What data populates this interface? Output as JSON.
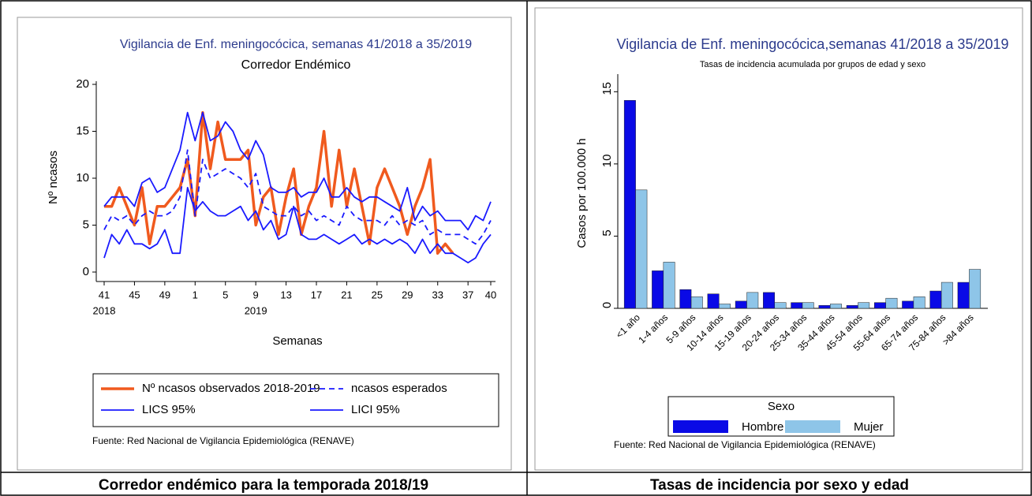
{
  "chart_data": [
    {
      "type": "line",
      "title": "Vigilancia de Enf. meningocócica, semanas 41/2018 a 35/2019",
      "subtitle": "Corredor Endémico",
      "y_label": "Nº ncasos",
      "x_label": "Semanas",
      "source": "Fuente: Red Nacional de Vigilancia Epidemiológica (RENAVE)",
      "caption": "Corredor endémico para la temporada 2018/19",
      "categories": [
        "41",
        null,
        null,
        null,
        "45",
        null,
        null,
        null,
        "49",
        null,
        null,
        null,
        "1",
        null,
        null,
        null,
        "5",
        null,
        null,
        null,
        "9",
        null,
        null,
        null,
        "13",
        null,
        null,
        null,
        "17",
        null,
        null,
        null,
        "21",
        null,
        null,
        null,
        "25",
        null,
        null,
        null,
        "29",
        null,
        null,
        null,
        "33",
        null,
        null,
        null,
        "37",
        null,
        null,
        "40"
      ],
      "years": [
        "2018",
        null,
        null,
        null,
        null,
        null,
        null,
        null,
        null,
        null,
        null,
        null,
        null,
        null,
        null,
        null,
        null,
        null,
        null,
        null,
        "2019",
        null,
        null,
        null,
        null,
        null,
        null,
        null,
        null,
        null,
        null,
        null,
        null,
        null,
        null,
        null,
        null,
        null,
        null,
        null,
        null,
        null,
        null,
        null,
        null,
        null,
        null,
        null,
        null,
        null,
        null,
        null
      ],
      "ylim": [
        0,
        20
      ],
      "yticks": [
        0,
        5,
        10,
        15,
        20
      ],
      "series": [
        {
          "name": "Nº ncasos observados 2018-2019",
          "color": "#f05a1e",
          "line_style": "solid",
          "line_width": 3.5,
          "values": [
            7,
            7,
            9,
            7,
            5,
            9,
            3,
            7,
            7,
            8,
            9,
            12,
            6,
            17,
            11,
            16,
            12,
            12,
            12,
            13,
            5,
            8,
            9,
            4,
            8,
            11,
            4,
            7,
            9,
            15,
            7,
            13,
            7,
            11,
            7,
            3,
            9,
            11,
            9,
            7,
            4,
            7,
            9,
            12,
            2,
            3,
            2,
            null,
            null,
            null,
            null,
            null
          ]
        },
        {
          "name": "ncasos esperados",
          "color": "#1a1aff",
          "line_style": "dashed",
          "line_width": 1.8,
          "values": [
            4.5,
            6,
            5.5,
            6,
            5,
            6,
            6.5,
            6,
            6,
            6.5,
            8,
            13,
            6,
            12,
            10,
            10.5,
            11,
            10.5,
            10,
            9,
            10.5,
            7,
            6.5,
            6,
            6,
            7,
            6,
            6.5,
            5.5,
            6,
            5.5,
            5,
            7,
            6,
            5.5,
            5.5,
            5.5,
            5,
            6,
            5,
            5.5,
            5,
            5.5,
            4,
            4.5,
            4,
            4,
            4,
            3.5,
            3,
            4,
            5.5
          ]
        },
        {
          "name": "LICS 95%",
          "color": "#1a1aff",
          "line_style": "solid",
          "line_width": 1.8,
          "values": [
            7,
            8,
            8,
            8,
            7,
            9.5,
            10,
            8.5,
            9,
            11,
            13,
            17,
            14,
            17,
            14,
            14.5,
            16,
            15,
            13,
            12,
            14,
            12.5,
            9,
            8.5,
            8.5,
            9,
            8,
            8.5,
            8.5,
            10,
            8,
            8,
            9,
            8,
            7.5,
            8,
            8,
            7.5,
            7,
            6.5,
            9,
            5.5,
            7,
            6,
            6.5,
            5.5,
            5.5,
            5.5,
            4.5,
            6,
            5.5,
            7.5
          ]
        },
        {
          "name": "LICI 95%",
          "color": "#1a1aff",
          "line_style": "solid",
          "line_width": 1.8,
          "values": [
            1.5,
            4,
            3,
            4.5,
            3,
            3,
            2.5,
            3,
            4.5,
            2,
            2,
            9,
            6.5,
            7.5,
            6.5,
            6,
            6,
            6.5,
            7,
            5.5,
            6.5,
            4.5,
            5.5,
            3.5,
            4,
            7,
            4,
            3.5,
            3.5,
            4,
            3.5,
            3,
            3.5,
            4,
            3,
            3.5,
            3,
            3.5,
            3,
            3.5,
            3,
            2,
            3.5,
            2,
            3,
            2,
            2,
            1.5,
            1,
            1.5,
            3,
            4
          ]
        }
      ]
    },
    {
      "type": "bar",
      "title": "Vigilancia de Enf. meningocócica,semanas 41/2018 a 35/2019",
      "subtitle": "Tasas de incidencia acumulada por grupos de edad y sexo",
      "y_label": "Casos por 100.000 h",
      "legend_title": "Sexo",
      "source": "Fuente: Red Nacional de Vigilancia Epidemiológica (RENAVE)",
      "caption": "Tasas de incidencia por sexo y edad",
      "categories": [
        "<1 año",
        "1-4 años",
        "5-9 años",
        "10-14 años",
        "15-19 años",
        "20-24 años",
        "25-34 años",
        "35-44 años",
        "45-54 años",
        "55-64 años",
        "65-74 años",
        "75-84 años",
        ">84 años"
      ],
      "ylim": [
        0,
        16
      ],
      "yticks": [
        0,
        5,
        10,
        15
      ],
      "series": [
        {
          "name": "Hombre",
          "color": "#0a0ae6",
          "values": [
            14.4,
            2.6,
            1.3,
            1.0,
            0.5,
            1.1,
            0.4,
            0.2,
            0.2,
            0.4,
            0.5,
            1.2,
            1.8
          ]
        },
        {
          "name": "Mujer",
          "color": "#8ec5e8",
          "values": [
            8.2,
            3.2,
            0.8,
            0.3,
            1.1,
            0.4,
            0.4,
            0.3,
            0.4,
            0.7,
            0.8,
            1.8,
            2.7
          ]
        }
      ]
    }
  ]
}
